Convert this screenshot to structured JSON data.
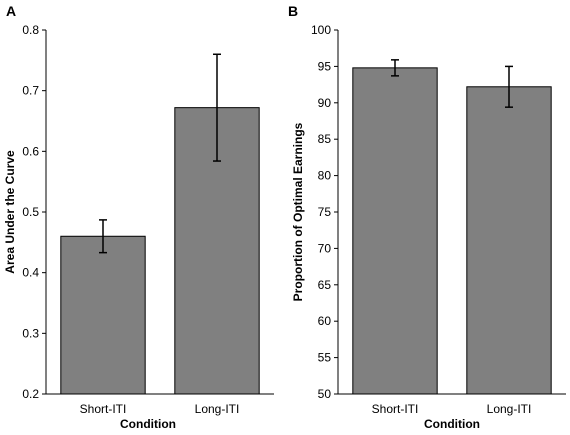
{
  "chart_data": [
    {
      "panel_label": "A",
      "type": "bar",
      "categories": [
        "Short-ITI",
        "Long-ITI"
      ],
      "values": [
        0.46,
        0.672
      ],
      "error": [
        0.027,
        0.088
      ],
      "xlabel": "Condition",
      "ylabel": "Area Under the Curve",
      "ylim": [
        0.2,
        0.8
      ],
      "yticks": [
        "0.2",
        "0.3",
        "0.4",
        "0.5",
        "0.6",
        "0.7",
        "0.8"
      ],
      "bar_color": "#808080",
      "grid": false
    },
    {
      "panel_label": "B",
      "type": "bar",
      "categories": [
        "Short-ITI",
        "Long-ITI"
      ],
      "values": [
        94.8,
        92.2
      ],
      "error": [
        1.1,
        2.8
      ],
      "xlabel": "Condition",
      "ylabel": "Proportion of Optimal Earnings",
      "ylim": [
        50,
        100
      ],
      "yticks": [
        "50",
        "55",
        "60",
        "65",
        "70",
        "75",
        "80",
        "85",
        "90",
        "95",
        "100"
      ],
      "bar_color": "#808080",
      "grid": false
    }
  ]
}
